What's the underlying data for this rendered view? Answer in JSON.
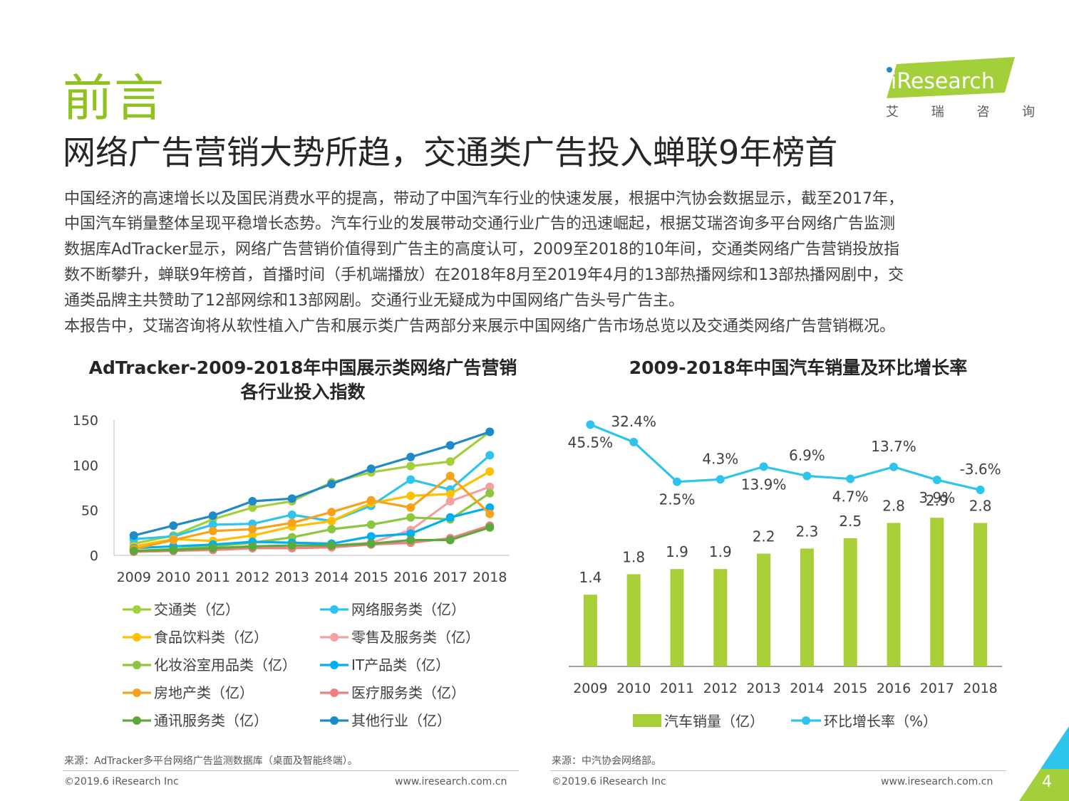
{
  "page": {
    "section_title": "前言",
    "headline": "网络广告营销大势所趋，交通类广告投入蝉联9年榜首",
    "paragraph_lines": [
      "中国经济的高速增长以及国民消费水平的提高，带动了中国汽车行业的快速发展，根据中汽协会数据显示，截至2017年，",
      "中国汽车销量整体呈现平稳增长态势。汽车行业的发展带动交通行业广告的迅速崛起，根据艾瑞咨询多平台网络广告监测",
      "数据库AdTracker显示，网络广告营销价值得到广告主的高度认可，2009至2018的10年间，交通类网络广告营销投放指",
      "数不断攀升，蝉联9年榜首，首播时间（手机端播放）在2018年8月至2019年4月的13部热播网综和13部热播网剧中，交",
      "通类品牌主共赞助了12部网综和13部网剧。交通行业无疑成为中国网络广告头号广告主。",
      "本报告中，艾瑞咨询将从软性植入广告和展示类广告两部分来展示中国网络广告市场总览以及交通类网络广告营销概况。"
    ],
    "logo": {
      "wordmark": "iResearch",
      "subtitle": "艾 瑞 咨 询"
    },
    "page_number": "4",
    "left_source": "来源：AdTracker多平台网络广告监测数据库（桌面及智能终端）。",
    "right_source": "来源：中汽协会网络部。",
    "copyright": "©2019.6 iResearch Inc",
    "website": "www.iresearch.com.cn",
    "colors": {
      "brand_green": "#8dc21f",
      "headline": "#262626"
    }
  },
  "chart_data": [
    {
      "type": "line",
      "title_lines": [
        "AdTracker-2009-2018年中国展示类网络广告营销",
        "各行业投入指数"
      ],
      "categories": [
        "2009",
        "2010",
        "2011",
        "2012",
        "2013",
        "2014",
        "2015",
        "2016",
        "2017",
        "2018"
      ],
      "ylim": [
        0,
        150
      ],
      "yticks": [
        0,
        50,
        100,
        150
      ],
      "grid": false,
      "legend_position": "bottom",
      "series": [
        {
          "name": "交通类（亿）",
          "color": "#a3cf3a",
          "values": [
            13,
            22,
            40,
            53,
            60,
            81,
            92,
            99,
            104,
            137
          ]
        },
        {
          "name": "网络服务类（亿）",
          "color": "#2ec4ec",
          "values": [
            18,
            21,
            34,
            35,
            45,
            38,
            55,
            84,
            73,
            111
          ]
        },
        {
          "name": "食品饮料类（亿）",
          "color": "#ffc000",
          "values": [
            10,
            18,
            16,
            22,
            32,
            38,
            58,
            66,
            68,
            93
          ]
        },
        {
          "name": "零售及服务类（亿）",
          "color": "#f4a0a0",
          "values": [
            4,
            5,
            7,
            8,
            9,
            11,
            14,
            28,
            60,
            76
          ]
        },
        {
          "name": "化妆浴室用品类（亿）",
          "color": "#8cc63f",
          "values": [
            5,
            7,
            10,
            14,
            20,
            29,
            34,
            42,
            40,
            69
          ]
        },
        {
          "name": "IT产品类（亿）",
          "color": "#00b0f0",
          "values": [
            8,
            10,
            12,
            15,
            14,
            13,
            21,
            24,
            42,
            53
          ]
        },
        {
          "name": "房地产类（亿）",
          "color": "#f7a21b",
          "values": [
            7,
            17,
            27,
            29,
            36,
            48,
            61,
            53,
            88,
            46
          ]
        },
        {
          "name": "医疗服务类（亿）",
          "color": "#f08080",
          "values": [
            4,
            5,
            6,
            8,
            8,
            9,
            12,
            14,
            19,
            33
          ]
        },
        {
          "name": "通讯服务类（亿）",
          "color": "#5daa3c",
          "values": [
            5,
            6,
            8,
            10,
            11,
            11,
            13,
            17,
            17,
            31
          ]
        },
        {
          "name": "其他行业（亿）",
          "color": "#1f8ac8",
          "values": [
            22,
            33,
            44,
            60,
            63,
            79,
            96,
            109,
            122,
            137
          ]
        }
      ]
    },
    {
      "type": "bar",
      "title": "2009-2018年中国汽车销量及环比增长率",
      "categories": [
        "2009",
        "2010",
        "2011",
        "2012",
        "2013",
        "2014",
        "2015",
        "2016",
        "2017",
        "2018"
      ],
      "legend_position": "bottom",
      "series": [
        {
          "name": "汽车销量（亿）",
          "type": "bar",
          "color": "#a9cf38",
          "values": [
            1.4,
            1.8,
            1.9,
            1.9,
            2.2,
            2.3,
            2.5,
            2.8,
            2.9,
            2.8
          ],
          "labels": [
            "1.4",
            "1.8",
            "1.9",
            "1.9",
            "2.2",
            "2.3",
            "2.5",
            "2.8",
            "2.9",
            "2.8"
          ]
        },
        {
          "name": "环比增长率（%）",
          "type": "line",
          "color": "#2ec4ec",
          "values": [
            45.5,
            32.4,
            2.5,
            4.3,
            13.9,
            6.9,
            4.7,
            13.7,
            3.9,
            -3.6
          ],
          "labels": [
            "45.5%",
            "32.4%",
            "2.5%",
            "4.3%",
            "13.9%",
            "6.9%",
            "4.7%",
            "13.7%",
            "3.9%",
            "-3.6%"
          ]
        }
      ]
    }
  ]
}
